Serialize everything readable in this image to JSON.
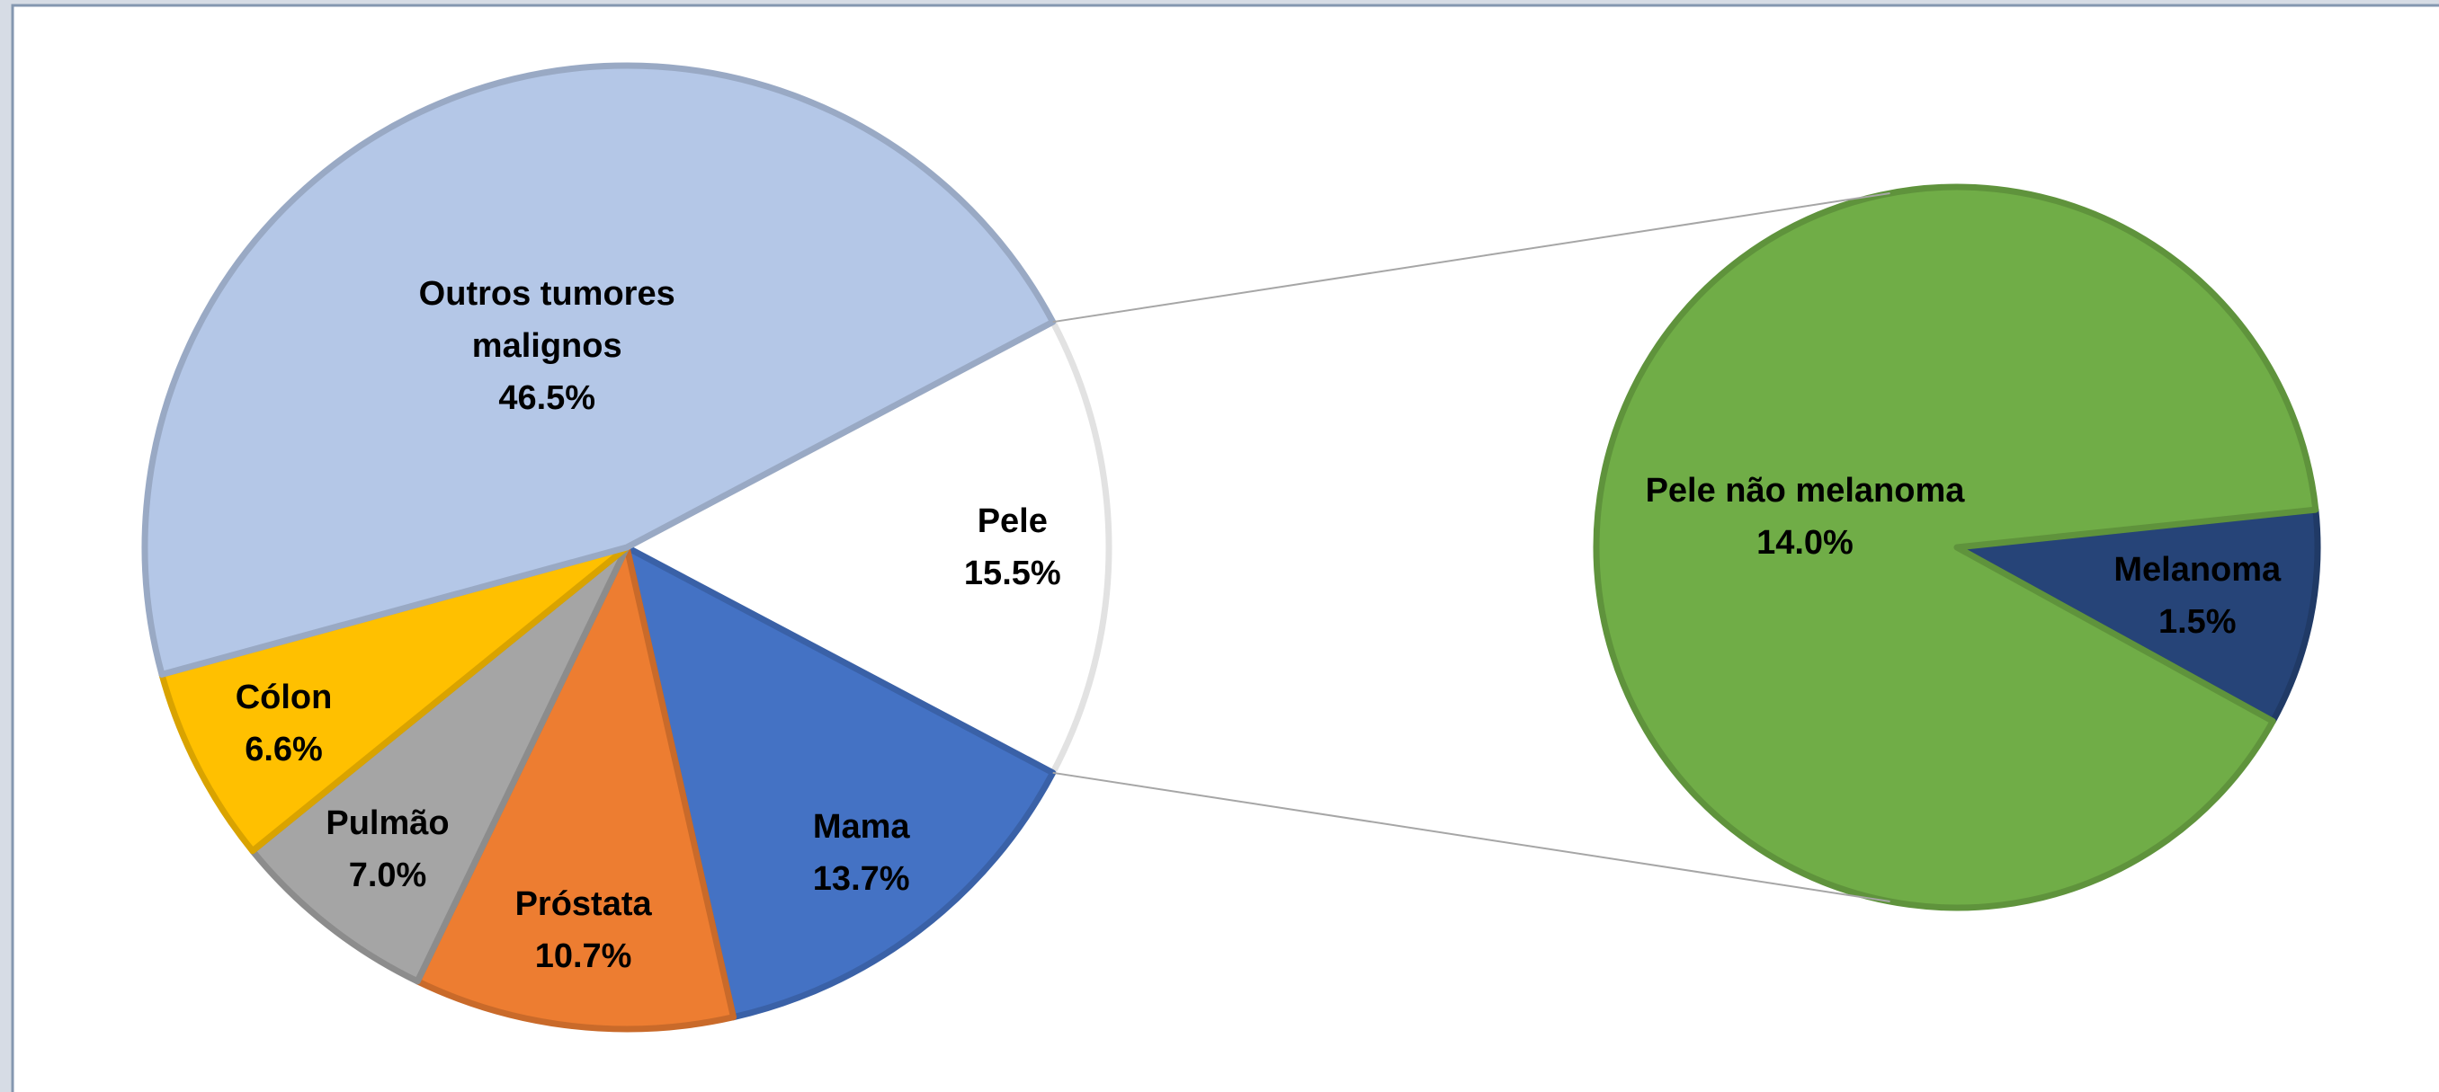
{
  "chart_data": {
    "type": "pie_of_pie",
    "main": {
      "categories": [
        "Pele",
        "Mama",
        "Próstata",
        "Pulmão",
        "Cólon",
        "Outros tumores malignos"
      ],
      "values": [
        15.5,
        13.7,
        10.7,
        7.0,
        6.6,
        46.5
      ],
      "value_labels": [
        "15.5%",
        "13.7%",
        "10.7%",
        "7.0%",
        "6.6%",
        "46.5%"
      ],
      "colors": [
        "#ffffff",
        "#4472c4",
        "#ed7d31",
        "#a5a5a5",
        "#ffc000",
        "#b4c7e7"
      ]
    },
    "secondary": {
      "categories": [
        "Melanoma",
        "Pele não melanoma"
      ],
      "values": [
        1.5,
        14.0
      ],
      "value_labels": [
        "1.5%",
        "14.0%"
      ],
      "colors": [
        "#264478",
        "#70ad47"
      ]
    }
  }
}
